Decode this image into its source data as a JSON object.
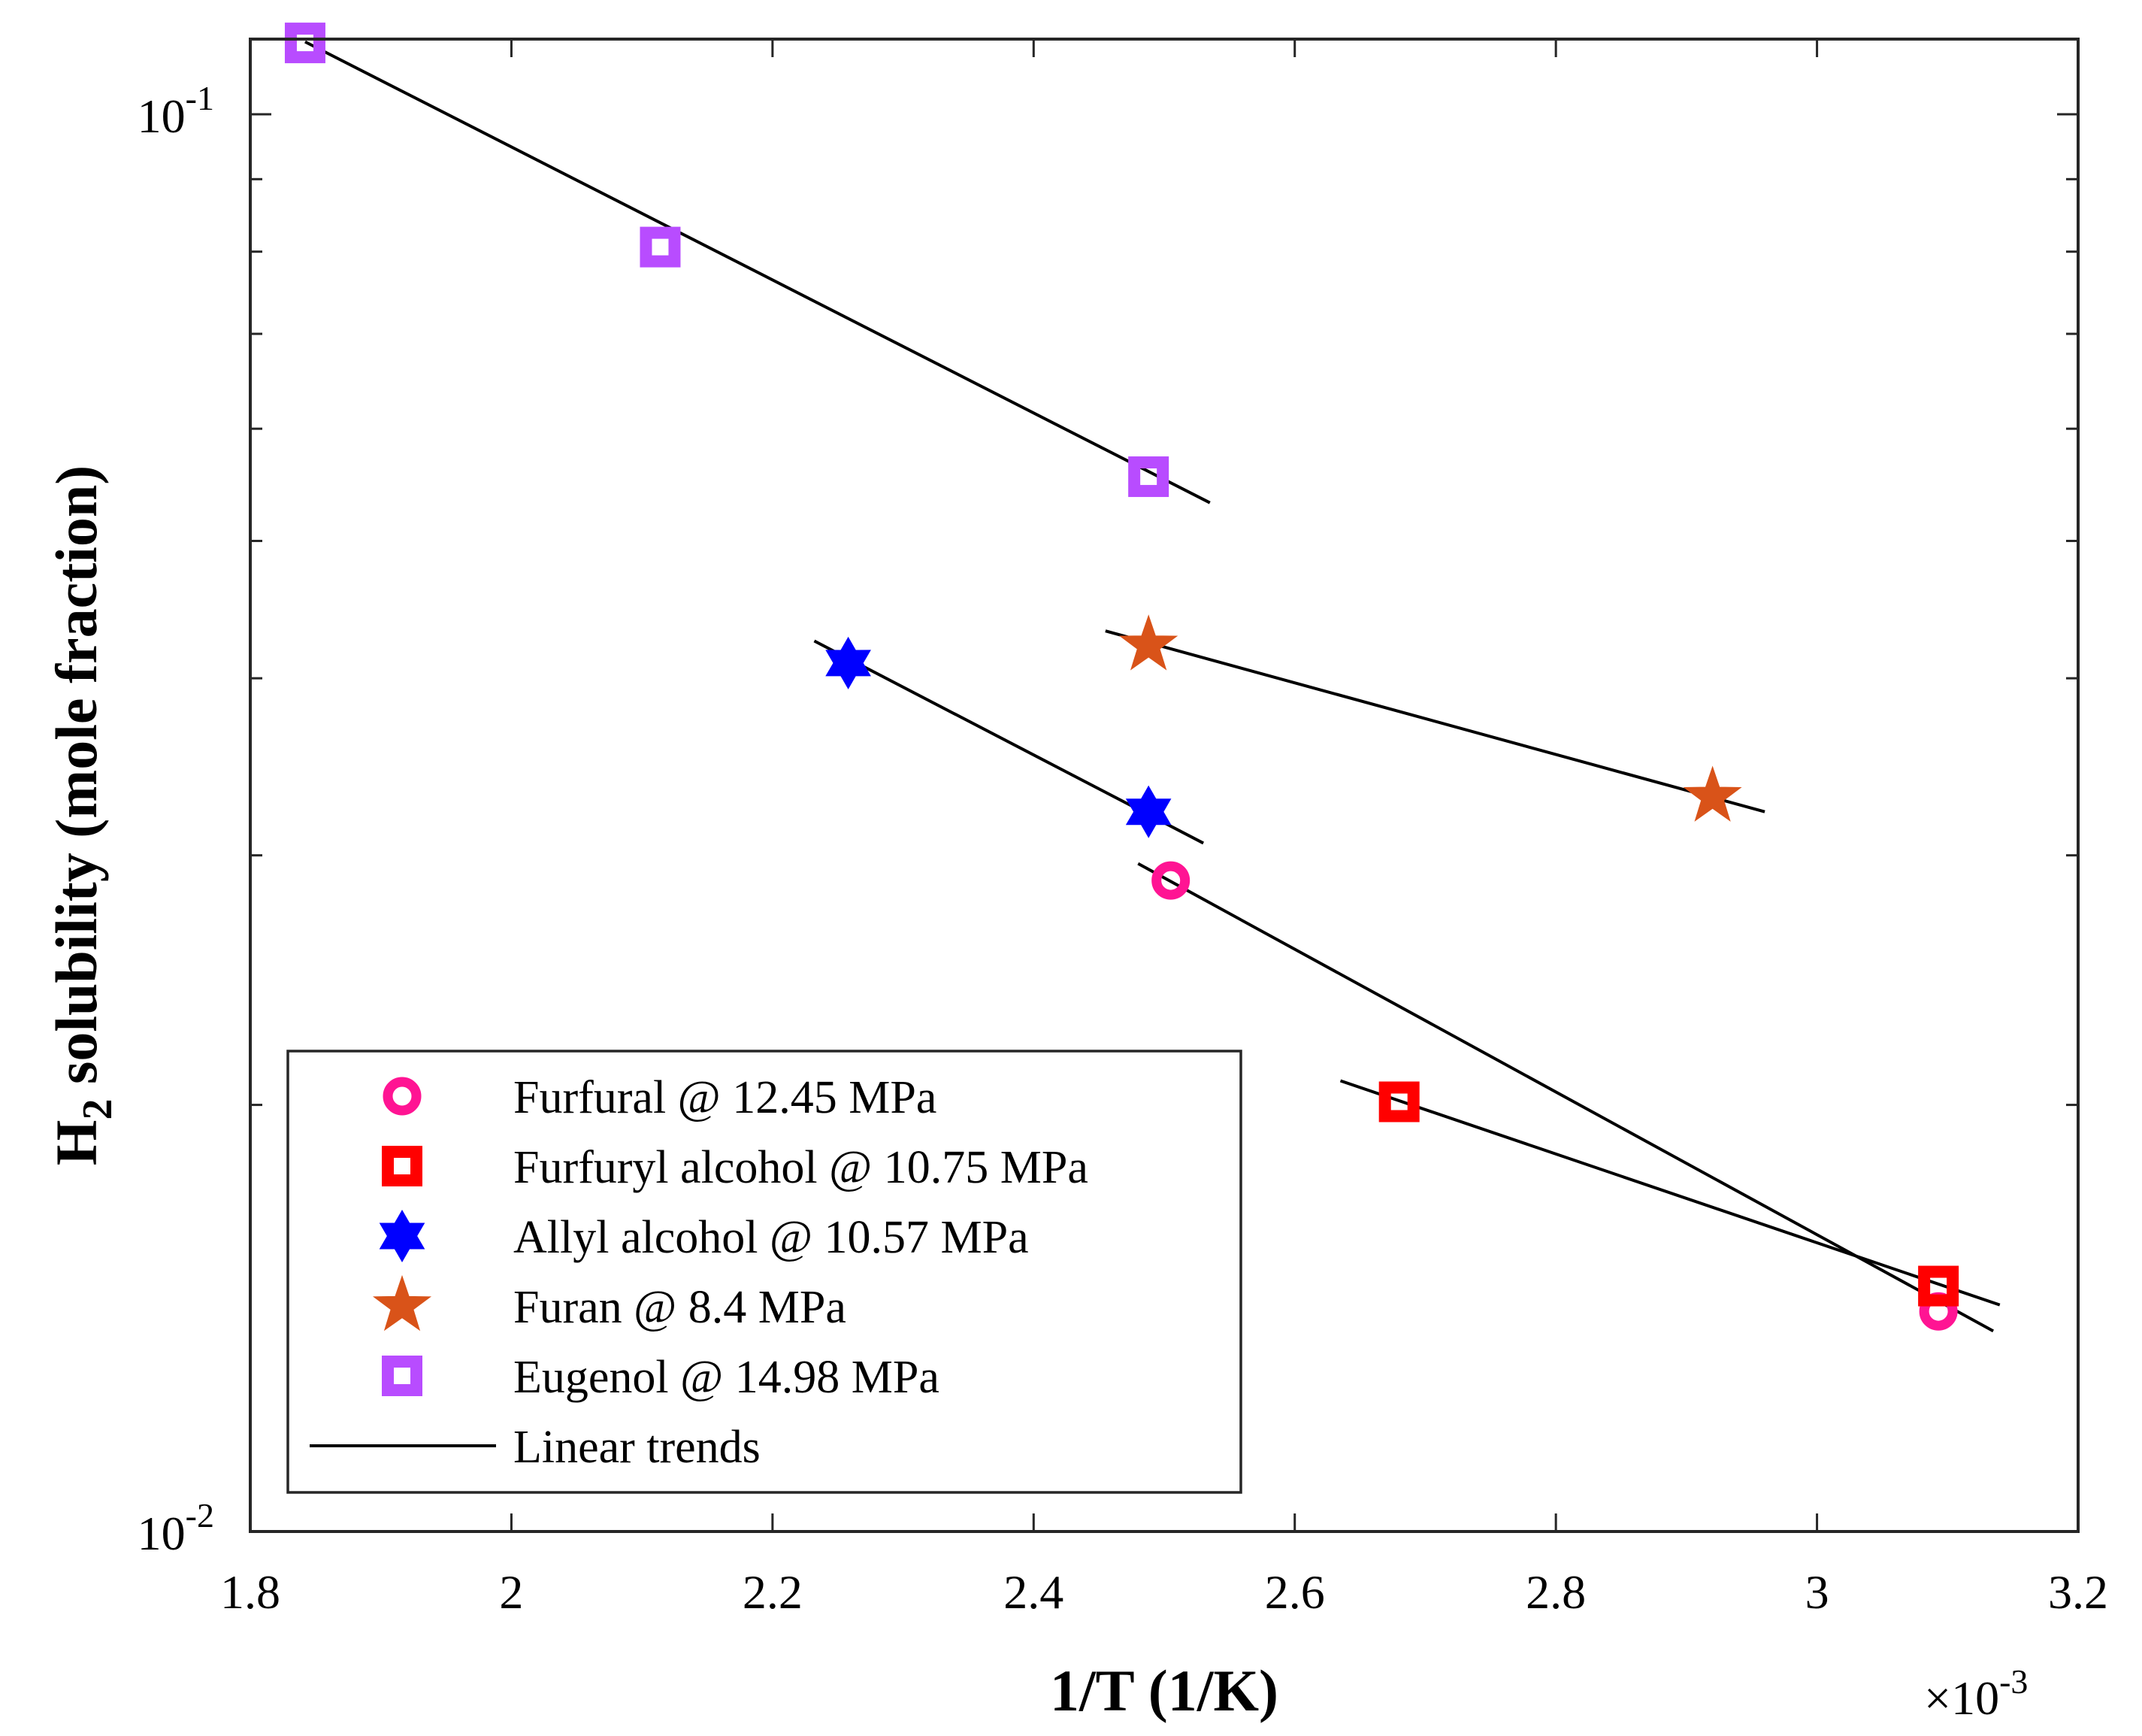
{
  "chart_data": {
    "type": "scatter",
    "xlabel": "1/T (1/K)",
    "x_multiplier_label": "×10",
    "x_multiplier_exponent": "-3",
    "ylabel_prefix": "H",
    "ylabel_subscript": "2",
    "ylabel_suffix": " solubility (mole fraction)",
    "xscale": "linear",
    "yscale": "log",
    "xlim": [
      1.8,
      3.2
    ],
    "ylim": [
      0.01,
      0.113
    ],
    "xticks": [
      1.8,
      2.0,
      2.2,
      2.4,
      2.6,
      2.8,
      3.0,
      3.2
    ],
    "xtick_labels": [
      "1.8",
      "2",
      "2.2",
      "2.4",
      "2.6",
      "2.8",
      "3",
      "3.2"
    ],
    "yticks_major": [
      {
        "value": 0.1,
        "base": "10",
        "exp": "-1"
      },
      {
        "value": 0.01,
        "base": "10",
        "exp": "-2"
      }
    ],
    "yticks_minor": [
      0.02,
      0.03,
      0.04,
      0.05,
      0.06,
      0.07,
      0.08,
      0.09
    ],
    "legend_location": "bottom-left",
    "series": [
      {
        "name": "Furfural @ 12.45 MPa",
        "marker": "circle",
        "color": "#ff1493",
        "points": [
          [
            2.505,
            0.0288
          ],
          [
            3.093,
            0.0143
          ]
        ],
        "trend": [
          [
            2.48,
            0.0296
          ],
          [
            3.135,
            0.01385
          ]
        ]
      },
      {
        "name": "Furfuryl alcohol @ 10.75 MPa",
        "marker": "square",
        "color": "#ff0000",
        "points": [
          [
            2.68,
            0.0201
          ],
          [
            3.093,
            0.0149
          ]
        ],
        "trend": [
          [
            2.635,
            0.0208
          ],
          [
            3.14,
            0.01445
          ]
        ]
      },
      {
        "name": "Allyl alcohol @ 10.57 MPa",
        "marker": "hexagram",
        "color": "#0000ff",
        "points": [
          [
            2.258,
            0.041
          ],
          [
            2.488,
            0.0322
          ]
        ],
        "trend": [
          [
            2.232,
            0.0425
          ],
          [
            2.53,
            0.0306
          ]
        ]
      },
      {
        "name": "Furan @ 8.4 MPa",
        "marker": "pentagram",
        "color": "#d95319",
        "points": [
          [
            2.488,
            0.0422
          ],
          [
            2.92,
            0.033
          ]
        ],
        "trend": [
          [
            2.455,
            0.0432
          ],
          [
            2.96,
            0.0322
          ]
        ]
      },
      {
        "name": "Eugenol @ 14.98 MPa",
        "marker": "square",
        "color": "#b84cff",
        "points": [
          [
            1.842,
            0.1123
          ],
          [
            2.114,
            0.0806
          ],
          [
            2.488,
            0.0555
          ]
        ],
        "trend": [
          [
            1.842,
            0.1125
          ],
          [
            2.535,
            0.0532
          ]
        ]
      }
    ],
    "trend_legend": "Linear trends"
  }
}
